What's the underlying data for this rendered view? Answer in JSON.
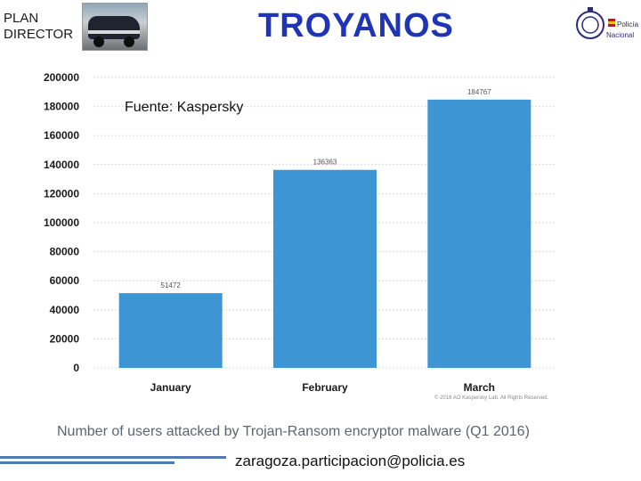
{
  "header": {
    "plan": "PLAN\nDIRECTOR",
    "title": "TROYANOS",
    "logo_text_1": "Policía",
    "logo_text_2": "Nacional"
  },
  "source_note": "Fuente: Kaspersky",
  "copyright": "© 2016 AO Kaspersky Lab. All Rights Reserved.",
  "caption": "Number of users attacked by Trojan-Ransom encryptor malware (Q1 2016)",
  "footer": {
    "email": "zaragoza.participacion@policia.es"
  },
  "colors": {
    "bar": "#3d95d4",
    "title": "#1f35b5",
    "rule": "#4f79b5",
    "grid": "#d9d9d9"
  },
  "chart_data": {
    "type": "bar",
    "categories": [
      "January",
      "February",
      "March"
    ],
    "values": [
      51472,
      136363,
      184767
    ],
    "value_labels": [
      "51472",
      "136363",
      "184767"
    ],
    "title": "",
    "xlabel": "",
    "ylabel": "",
    "ylim": [
      0,
      200000
    ],
    "yticks": [
      0,
      20000,
      40000,
      60000,
      80000,
      100000,
      120000,
      140000,
      160000,
      180000,
      200000
    ],
    "grid": true,
    "legend": "none"
  }
}
